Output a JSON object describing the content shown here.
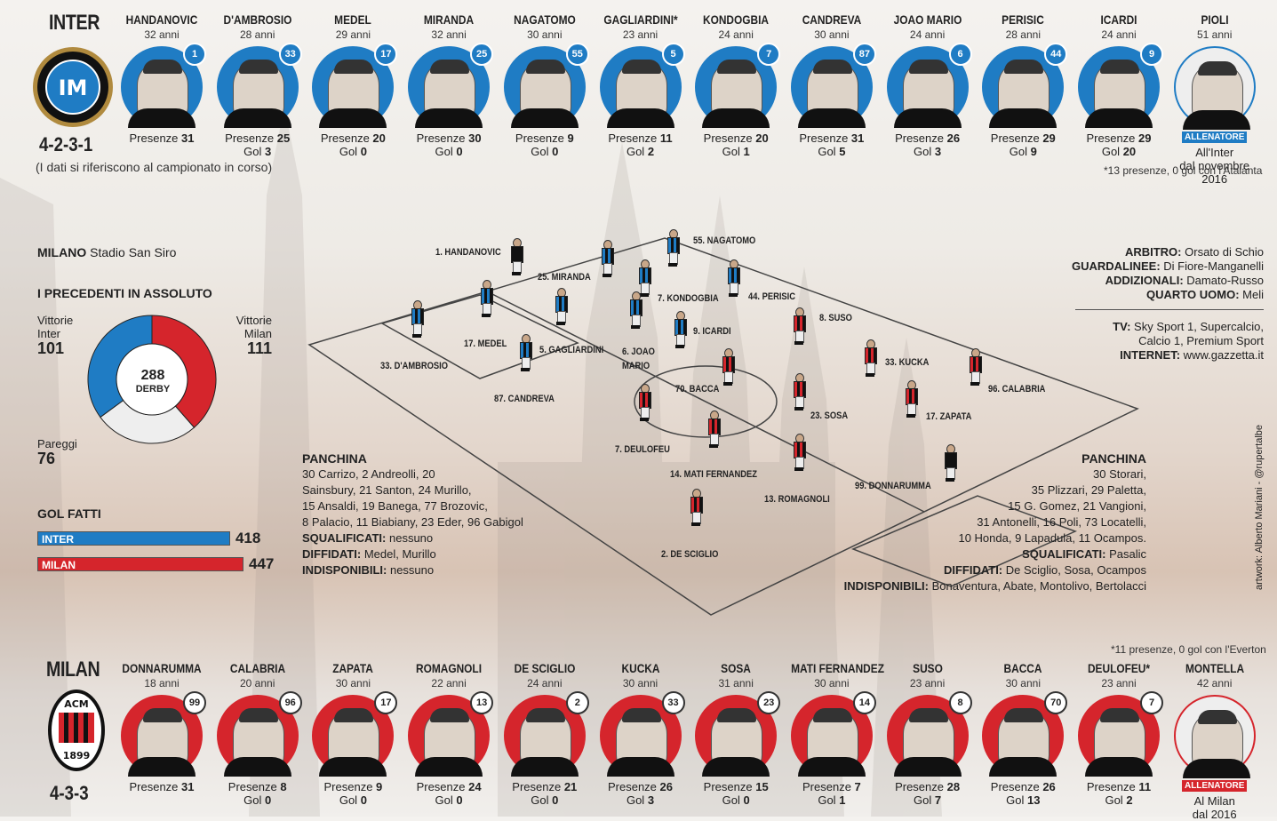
{
  "inter": {
    "name": "INTER",
    "formation": "4-2-3-1",
    "note": "(I dati si riferiscono al campionato in corso)",
    "footnote": "*13 presenze, 0 gol con l'Atalanta",
    "players": [
      {
        "name": "HANDANOVIC",
        "age": "32 anni",
        "number": "1",
        "presenze_label": "Presenze",
        "presenze": "31"
      },
      {
        "name": "D'AMBROSIO",
        "age": "28 anni",
        "number": "33",
        "presenze_label": "Presenze",
        "presenze": "25",
        "gol_label": "Gol",
        "gol": "3"
      },
      {
        "name": "MEDEL",
        "age": "29 anni",
        "number": "17",
        "presenze_label": "Presenze",
        "presenze": "20",
        "gol_label": "Gol",
        "gol": "0"
      },
      {
        "name": "MIRANDA",
        "age": "32 anni",
        "number": "25",
        "presenze_label": "Presenze",
        "presenze": "30",
        "gol_label": "Gol",
        "gol": "0"
      },
      {
        "name": "NAGATOMO",
        "age": "30 anni",
        "number": "55",
        "presenze_label": "Presenze",
        "presenze": "9",
        "gol_label": "Gol",
        "gol": "0"
      },
      {
        "name": "GAGLIARDINI*",
        "age": "23 anni",
        "number": "5",
        "presenze_label": "Presenze",
        "presenze": "11",
        "gol_label": "Gol",
        "gol": "2"
      },
      {
        "name": "KONDOGBIA",
        "age": "24 anni",
        "number": "7",
        "presenze_label": "Presenze",
        "presenze": "20",
        "gol_label": "Gol",
        "gol": "1"
      },
      {
        "name": "CANDREVA",
        "age": "30 anni",
        "number": "87",
        "presenze_label": "Presenze",
        "presenze": "31",
        "gol_label": "Gol",
        "gol": "5"
      },
      {
        "name": "JOAO MARIO",
        "age": "24 anni",
        "number": "6",
        "presenze_label": "Presenze",
        "presenze": "26",
        "gol_label": "Gol",
        "gol": "3"
      },
      {
        "name": "PERISIC",
        "age": "28 anni",
        "number": "44",
        "presenze_label": "Presenze",
        "presenze": "29",
        "gol_label": "Gol",
        "gol": "9"
      },
      {
        "name": "ICARDI",
        "age": "24 anni",
        "number": "9",
        "presenze_label": "Presenze",
        "presenze": "29",
        "gol_label": "Gol",
        "gol": "20"
      }
    ],
    "coach": {
      "name": "PIOLI",
      "age": "51 anni",
      "tag": "ALLENATORE",
      "line1": "All'Inter",
      "line2": "dal novembre 2016"
    }
  },
  "milan": {
    "name": "MILAN",
    "formation": "4-3-3",
    "footnote": "*11 presenze, 0 gol con l'Everton",
    "players": [
      {
        "name": "DONNARUMMA",
        "age": "18 anni",
        "number": "99",
        "presenze_label": "Presenze",
        "presenze": "31"
      },
      {
        "name": "CALABRIA",
        "age": "20 anni",
        "number": "96",
        "presenze_label": "Presenze",
        "presenze": "8",
        "gol_label": "Gol",
        "gol": "0"
      },
      {
        "name": "ZAPATA",
        "age": "30 anni",
        "number": "17",
        "presenze_label": "Presenze",
        "presenze": "9",
        "gol_label": "Gol",
        "gol": "0"
      },
      {
        "name": "ROMAGNOLI",
        "age": "22 anni",
        "number": "13",
        "presenze_label": "Presenze",
        "presenze": "24",
        "gol_label": "Gol",
        "gol": "0"
      },
      {
        "name": "DE SCIGLIO",
        "age": "24 anni",
        "number": "2",
        "presenze_label": "Presenze",
        "presenze": "21",
        "gol_label": "Gol",
        "gol": "0"
      },
      {
        "name": "KUCKA",
        "age": "30 anni",
        "number": "33",
        "presenze_label": "Presenze",
        "presenze": "26",
        "gol_label": "Gol",
        "gol": "3"
      },
      {
        "name": "SOSA",
        "age": "31 anni",
        "number": "23",
        "presenze_label": "Presenze",
        "presenze": "15",
        "gol_label": "Gol",
        "gol": "0"
      },
      {
        "name": "MATI FERNANDEZ",
        "age": "30 anni",
        "number": "14",
        "presenze_label": "Presenze",
        "presenze": "7",
        "gol_label": "Gol",
        "gol": "1"
      },
      {
        "name": "SUSO",
        "age": "23 anni",
        "number": "8",
        "presenze_label": "Presenze",
        "presenze": "28",
        "gol_label": "Gol",
        "gol": "7"
      },
      {
        "name": "BACCA",
        "age": "30 anni",
        "number": "70",
        "presenze_label": "Presenze",
        "presenze": "26",
        "gol_label": "Gol",
        "gol": "13"
      },
      {
        "name": "DEULOFEU*",
        "age": "23 anni",
        "number": "7",
        "presenze_label": "Presenze",
        "presenze": "11",
        "gol_label": "Gol",
        "gol": "2"
      }
    ],
    "coach": {
      "name": "MONTELLA",
      "age": "42 anni",
      "tag": "ALLENATORE",
      "line1": "Al Milan",
      "line2": "dal 2016"
    }
  },
  "venue": {
    "city": "MILANO",
    "stadium": "Stadio San Siro"
  },
  "precedenti": {
    "title": "I PRECEDENTI IN ASSOLUTO",
    "inter_label1": "Vittorie",
    "inter_label2": "Inter",
    "inter_value": "101",
    "milan_label1": "Vittorie",
    "milan_label2": "Milan",
    "milan_value": "111",
    "draw_label": "Pareggi",
    "draw_value": "76",
    "total": "288",
    "total_label": "DERBY",
    "inter_color": "#1f7cc4",
    "milan_color": "#d5252c"
  },
  "gol_fatti": {
    "title": "GOL FATTI",
    "inter_label": "INTER",
    "inter_value": "418",
    "milan_label": "MILAN",
    "milan_value": "447"
  },
  "officials": {
    "arbitro_label": "ARBITRO:",
    "arbitro": "Orsato di Schio",
    "guardalinee_label": "GUARDALINEE:",
    "guardalinee": "Di Fiore-Manganelli",
    "addizionali_label": "ADDIZIONALI:",
    "addizionali": "Damato-Russo",
    "quarto_label": "QUARTO UOMO:",
    "quarto": "Meli"
  },
  "tv": {
    "tv_label": "TV:",
    "tv_line1": "Sky Sport 1, Supercalcio,",
    "tv_line2": "Calcio 1, Premium Sport",
    "internet_label": "INTERNET:",
    "internet": "www.gazzetta.it"
  },
  "inter_bench": {
    "title": "PANCHINA",
    "lines": [
      "30 Carrizo, 2 Andreolli, 20",
      "Sainsbury, 21 Santon, 24 Murillo,",
      "15 Ansaldi, 19 Banega, 77 Brozovic,",
      "8 Palacio, 11 Biabiany, 23 Eder, 96 Gabigol"
    ],
    "squalificati_label": "SQUALIFICATI:",
    "squalificati": "nessuno",
    "diffidati_label": "DIFFIDATI:",
    "diffidati": "Medel, Murillo",
    "indisponibili_label": "INDISPONIBILI:",
    "indisponibili": "nessuno"
  },
  "milan_bench": {
    "title": "PANCHINA",
    "lines": [
      "30 Storari,",
      "35 Plizzari, 29 Paletta,",
      "15 G. Gomez, 21 Vangioni,",
      "31 Antonelli, 16 Poli, 73 Locatelli,",
      "10 Honda, 9 Lapadula, 11 Ocampos."
    ],
    "squalificati_label": "SQUALIFICATI:",
    "squalificati": "Pasalic",
    "diffidati_label": "DIFFIDATI:",
    "diffidati": "De Sciglio, Sosa, Ocampos",
    "indisponibili_label": "INDISPONIBILI:",
    "indisponibili": "Bonaventura, Abate, Montolivo, Bertolacci"
  },
  "pitch_labels": {
    "inter": [
      "1. HANDANOVIC",
      "25. MIRANDA",
      "55. NAGATOMO",
      "7. KONDOGBIA",
      "44. PERISIC",
      "17. MEDEL",
      "5. GAGLIARDINI",
      "6. JOAO",
      "MARIO",
      "9. ICARDI",
      "33. D'AMBROSIO",
      "87. CANDREVA"
    ],
    "milan": [
      "8. SUSO",
      "33. KUCKA",
      "96. CALABRIA",
      "70. BACCA",
      "23. SOSA",
      "17. ZAPATA",
      "7. DEULOFEU",
      "14. MATI FERNANDEZ",
      "13. ROMAGNOLI",
      "99. DONNARUMMA",
      "2. DE SCIGLIO"
    ]
  },
  "credit": "artwork: Alberto Mariani - @rupertalbe"
}
